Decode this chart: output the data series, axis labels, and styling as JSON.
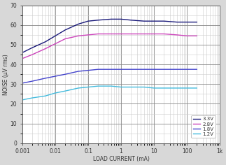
{
  "xlabel": "LOAD CURRENT (mA)",
  "ylabel": "NOISE (μV rms)",
  "ylim": [
    0,
    70
  ],
  "yticks": [
    0,
    10,
    20,
    30,
    40,
    50,
    60,
    70
  ],
  "xtick_labels": [
    "0.001",
    "0.01",
    "0.1",
    "1",
    "10",
    "100",
    "1k"
  ],
  "xtick_vals": [
    0.001,
    0.01,
    0.1,
    1,
    10,
    100,
    1000
  ],
  "legend_labels": [
    "3.3V",
    "2.8V",
    "1.8V",
    "1.2V"
  ],
  "line_colors": [
    "#1a1a7a",
    "#cc44bb",
    "#4444cc",
    "#44bbdd"
  ],
  "bg_color": "#ffffff",
  "major_grid_color": "#888888",
  "minor_grid_color": "#cccccc",
  "fig_bg": "#d8d8d8",
  "series": {
    "3.3V": {
      "x": [
        0.001,
        0.002,
        0.005,
        0.01,
        0.02,
        0.05,
        0.1,
        0.2,
        0.5,
        1,
        2,
        5,
        10,
        20,
        50,
        100,
        200
      ],
      "y": [
        46,
        48.5,
        51.5,
        54.5,
        57.5,
        60.5,
        62,
        62.5,
        63,
        63,
        62.5,
        62,
        62,
        62,
        61.5,
        61.5,
        61.5
      ]
    },
    "2.8V": {
      "x": [
        0.001,
        0.002,
        0.005,
        0.01,
        0.02,
        0.05,
        0.1,
        0.2,
        0.5,
        1,
        2,
        5,
        10,
        20,
        50,
        100,
        200
      ],
      "y": [
        43,
        45,
        48,
        50.5,
        53,
        54.5,
        55,
        55.5,
        55.5,
        55.5,
        55.5,
        55.5,
        55.5,
        55.5,
        55,
        54.5,
        54.5
      ]
    },
    "1.8V": {
      "x": [
        0.001,
        0.002,
        0.005,
        0.01,
        0.02,
        0.05,
        0.1,
        0.2,
        0.5,
        1,
        2,
        5,
        10,
        20,
        50,
        100,
        200
      ],
      "y": [
        30.5,
        31.5,
        33,
        34,
        35,
        36.5,
        37,
        37.5,
        37.5,
        37.5,
        37.5,
        37.5,
        37.5,
        37.5,
        37.5,
        37.5,
        37.5
      ]
    },
    "1.2V": {
      "x": [
        0.001,
        0.002,
        0.005,
        0.01,
        0.02,
        0.05,
        0.1,
        0.2,
        0.5,
        1,
        2,
        5,
        10,
        20,
        50,
        100,
        200
      ],
      "y": [
        22,
        23,
        24,
        25.5,
        26.5,
        28,
        28.5,
        29,
        29,
        28.5,
        28.5,
        28.5,
        28,
        28,
        28,
        28,
        28
      ]
    }
  }
}
